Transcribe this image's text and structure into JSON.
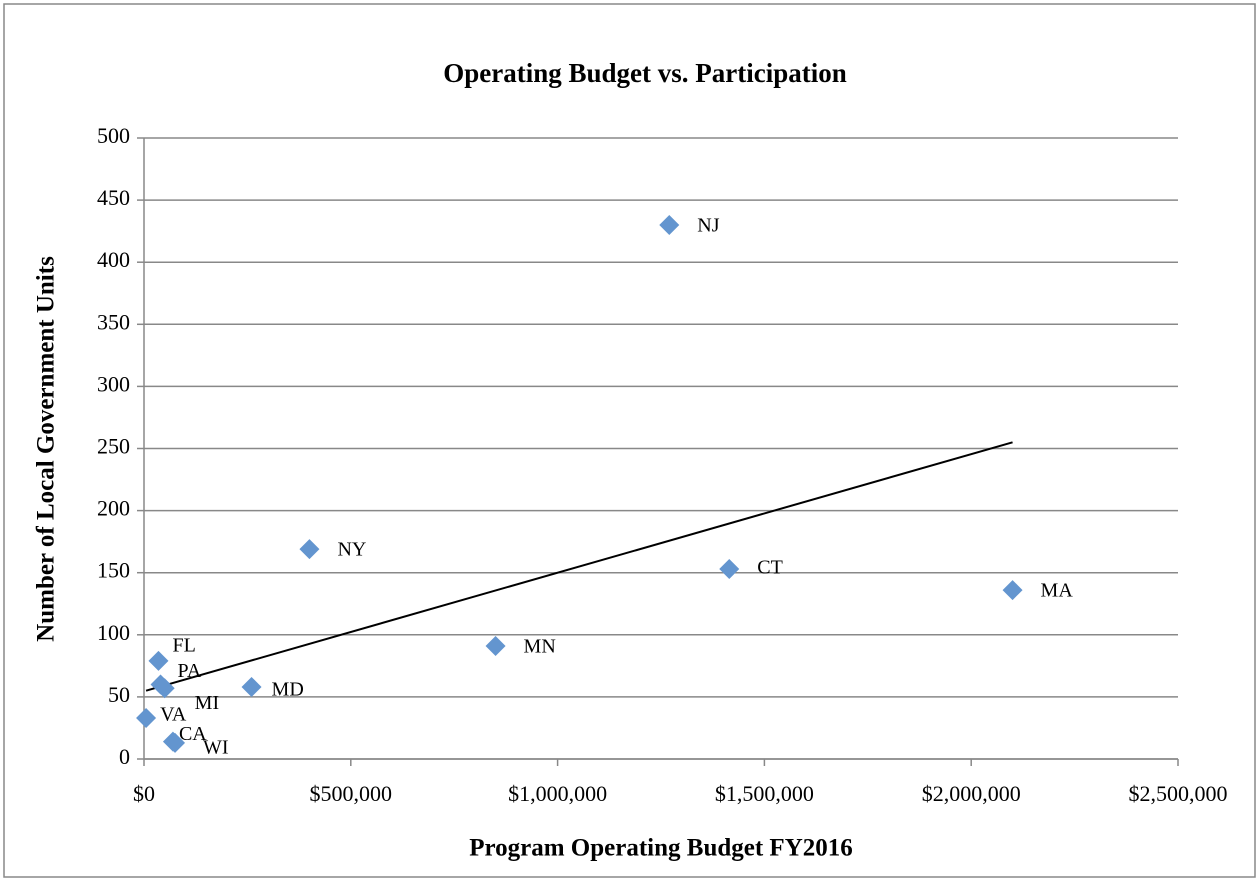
{
  "chart_data": {
    "type": "scatter",
    "title": "Operating Budget vs. Participation",
    "x_label": "Program Operating Budget FY2016",
    "y_label": "Number of Local Government Units",
    "labels": [
      "NJ",
      "CT",
      "MA",
      "NY",
      "MN",
      "MD",
      "FL",
      "PA",
      "MI",
      "VA",
      "CA",
      "WI"
    ],
    "x": [
      1270000,
      1415000,
      2100000,
      400000,
      850000,
      260000,
      35000,
      40000,
      50000,
      5000,
      70000,
      75000
    ],
    "values": [
      430,
      153,
      136,
      169,
      91,
      58,
      79,
      60,
      57,
      33,
      14,
      13
    ],
    "color": "#6395cf",
    "trendline": {
      "x": [
        5000,
        2100000
      ],
      "y": [
        55,
        255
      ],
      "color": "#000000"
    },
    "xlim": [
      0,
      2500000
    ],
    "xticks": [
      {
        "value": 0,
        "label": "$0"
      },
      {
        "value": 500000,
        "label": "$500,000"
      },
      {
        "value": 1000000,
        "label": "$1,000,000"
      },
      {
        "value": 1500000,
        "label": "$1,500,000"
      },
      {
        "value": 2000000,
        "label": "$2,000,000"
      },
      {
        "value": 2500000,
        "label": "$2,500,000"
      }
    ],
    "ylim": [
      0,
      500
    ],
    "yticks": [
      0,
      50,
      100,
      150,
      200,
      250,
      300,
      350,
      400,
      450,
      500
    ],
    "grid": true
  }
}
